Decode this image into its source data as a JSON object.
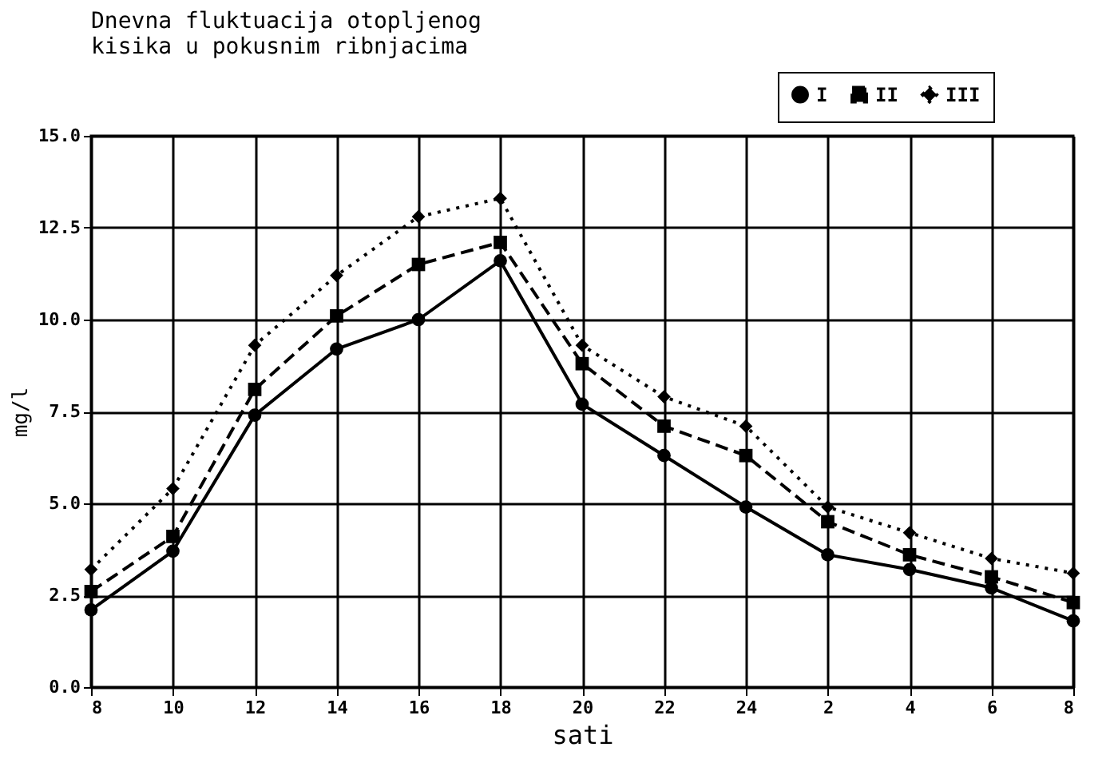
{
  "chart_data": {
    "type": "line",
    "title": "Dnevna fluktuacija otopljenog\nkisika u pokusnim ribnjacima",
    "xlabel": "sati",
    "ylabel": "mg/l",
    "categories": [
      "8",
      "10",
      "12",
      "14",
      "16",
      "18",
      "20",
      "22",
      "24",
      "2",
      "4",
      "6",
      "8"
    ],
    "series": [
      {
        "name": "I",
        "color": "#000000",
        "marker": "circle",
        "line_style": "solid",
        "values": [
          2.1,
          3.7,
          7.4,
          9.2,
          10.0,
          11.6,
          7.7,
          6.3,
          4.9,
          3.6,
          3.2,
          2.7,
          1.8
        ]
      },
      {
        "name": "II",
        "color": "#000000",
        "marker": "square",
        "line_style": "dashed",
        "values": [
          2.6,
          4.1,
          8.1,
          10.1,
          11.5,
          12.1,
          8.8,
          7.1,
          6.3,
          4.5,
          3.6,
          3.0,
          2.3
        ]
      },
      {
        "name": "III",
        "color": "#000000",
        "marker": "diamond",
        "line_style": "dotted",
        "values": [
          3.2,
          5.4,
          9.3,
          11.2,
          12.8,
          13.3,
          9.3,
          7.9,
          7.1,
          4.9,
          4.2,
          3.5,
          3.1
        ]
      }
    ],
    "ylim": [
      0,
      15
    ],
    "yticks": [
      {
        "value": 0,
        "label": "0.0"
      },
      {
        "value": 2.5,
        "label": "2.5"
      },
      {
        "value": 5,
        "label": "5.0"
      },
      {
        "value": 7.5,
        "label": "7.5"
      },
      {
        "value": 10,
        "label": "10.0"
      },
      {
        "value": 12.5,
        "label": "12.5"
      },
      {
        "value": 15,
        "label": "15.0"
      }
    ],
    "grid": true,
    "legend": "top right"
  }
}
